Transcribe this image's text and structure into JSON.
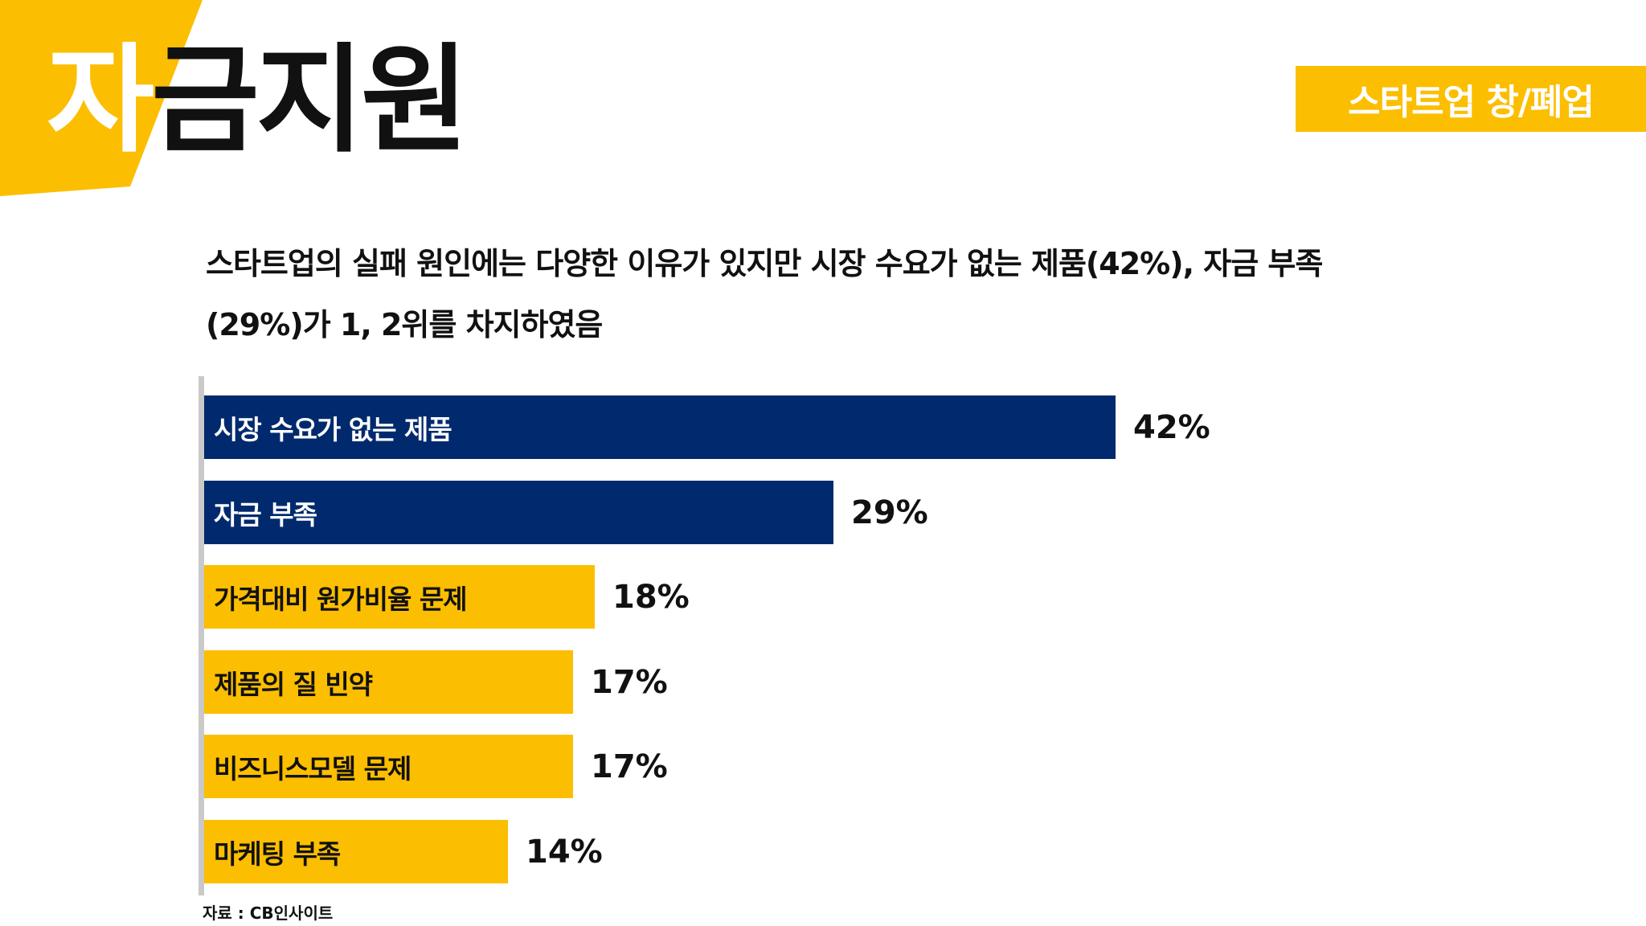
{
  "header": {
    "title_first_char": "자",
    "title_rest": "금지원",
    "category_tag": "스타트업 창/폐업"
  },
  "summary": {
    "line1": "스타트업의 실패 원인에는 다양한 이유가 있지만 시장 수요가 없는 제품(42%), 자금 부족",
    "line2": "(29%)가 1, 2위를 차지하였음"
  },
  "colors": {
    "accent_gold": "#fcbe00",
    "highlight_navy": "#012a6e",
    "axis_gray": "#c9c9c9"
  },
  "chart_data": {
    "type": "bar",
    "orientation": "horizontal",
    "categories": [
      "시장 수요가 없는 제품",
      "자금 부족",
      "가격대비 원가비율 문제",
      "제품의 질 빈약",
      "비즈니스모델 문제",
      "마케팅 부족"
    ],
    "values": [
      42,
      29,
      18,
      17,
      17,
      14
    ],
    "value_labels": [
      "42%",
      "29%",
      "18%",
      "17%",
      "17%",
      "14%"
    ],
    "bar_colors": [
      "#012a6e",
      "#012a6e",
      "#fcbe00",
      "#fcbe00",
      "#fcbe00",
      "#fcbe00"
    ],
    "unit": "%",
    "xlim": [
      0,
      42
    ],
    "grid": false,
    "legend": "none"
  },
  "source": "자료 : CB인사이트"
}
